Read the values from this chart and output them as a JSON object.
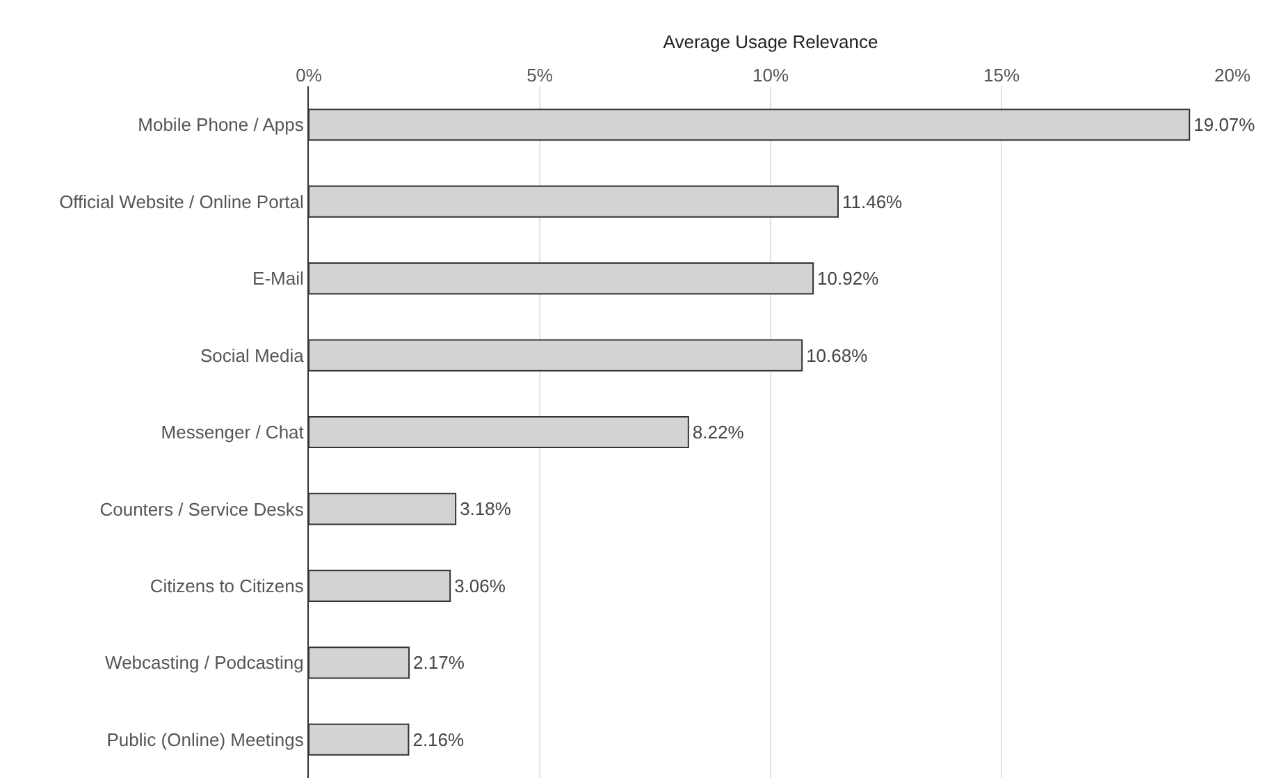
{
  "chart_data": {
    "type": "bar",
    "orientation": "horizontal",
    "xlabel": "Average Usage Relevance",
    "categories": [
      "Mobile Phone / Apps",
      "Official Website / Online Portal",
      "E-Mail",
      "Social Media",
      "Messenger / Chat",
      "Counters / Service Desks",
      "Citizens to Citizens",
      "Webcasting / Podcasting",
      "Public (Online) Meetings"
    ],
    "values": [
      19.07,
      11.46,
      10.92,
      10.68,
      8.22,
      3.18,
      3.06,
      2.17,
      2.16
    ],
    "value_labels": [
      "19.07%",
      "11.46%",
      "10.92%",
      "10.68%",
      "8.22%",
      "3.18%",
      "3.06%",
      "2.17%",
      "2.16%"
    ],
    "color": "#d3d3d3",
    "xlim": [
      0,
      20
    ],
    "xticks": [
      {
        "value": 0,
        "label": "0%"
      },
      {
        "value": 5,
        "label": "5%"
      },
      {
        "value": 10,
        "label": "10%"
      },
      {
        "value": 15,
        "label": "15%"
      },
      {
        "value": 20,
        "label": "20%"
      }
    ],
    "grid": "x"
  }
}
